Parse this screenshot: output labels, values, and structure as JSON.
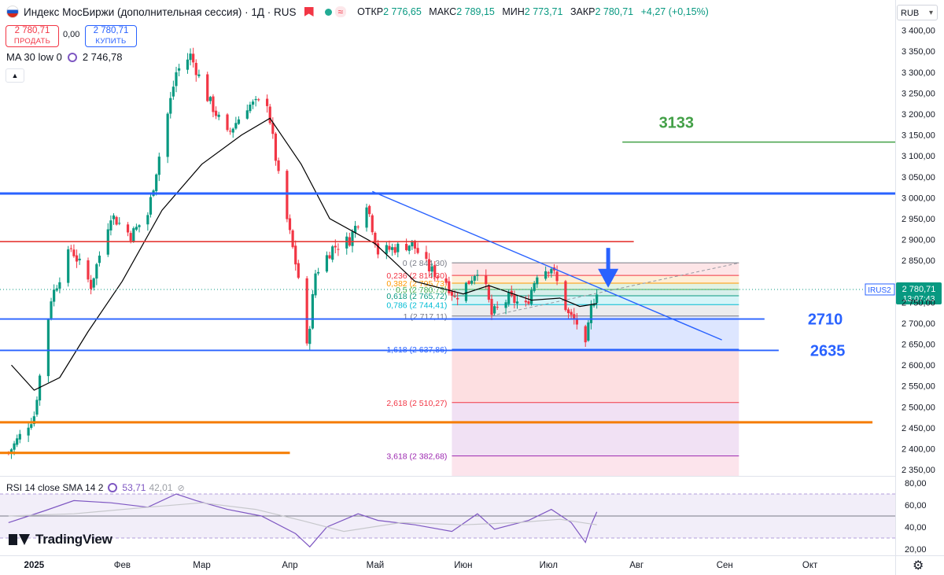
{
  "header": {
    "title": "Индекс МосБиржи (дополнительная сессия) · 1Д · RUS",
    "ohlc": [
      {
        "key": "ОТКР",
        "value": "2 776,65"
      },
      {
        "key": "МАКС",
        "value": "2 789,15"
      },
      {
        "key": "МИН",
        "value": "2 773,71"
      },
      {
        "key": "ЗАКР",
        "value": "2 780,71"
      }
    ],
    "change": "+4,27 (+0,15%)",
    "currency": "RUB"
  },
  "trade": {
    "sell_price": "2 780,71",
    "sell_label": "ПРОДАТЬ",
    "spread": "0,00",
    "buy_price": "2 780,71",
    "buy_label": "КУПИТЬ"
  },
  "ma": {
    "label": "MA 30 low 0",
    "value": "2 746,78"
  },
  "rsi": {
    "label": "RSI 14 close SMA 14 2",
    "value": "53,71",
    "sma_value": "42,01"
  },
  "branding": "TradingView",
  "colors": {
    "up": "#089981",
    "down": "#f23645",
    "ma": "#000000",
    "rsi": "#7e57c2",
    "level_blue": "#2962ff",
    "level_red": "#e53935",
    "level_orange": "#f57c00",
    "target_green": "#43a047"
  },
  "chart_data": {
    "type": "candlestick",
    "y_axis_labels": [
      "3 400,00",
      "3 350,00",
      "3 300,00",
      "3 250,00",
      "3 200,00",
      "3 150,00",
      "3 100,00",
      "3 050,00",
      "3 000,00",
      "2 950,00",
      "2 900,00",
      "2 850,00",
      "2 800,00",
      "2 750,00",
      "2 700,00",
      "2 650,00",
      "2 600,00",
      "2 550,00",
      "2 500,00",
      "2 450,00",
      "2 400,00",
      "2 350,00"
    ],
    "ylim": [
      2335,
      3420
    ],
    "x_axis_labels": [
      {
        "label": "2025",
        "date": "2025-01-01"
      },
      {
        "label": "Фев",
        "date": "2025-02-01"
      },
      {
        "label": "Мар",
        "date": "2025-03-01"
      },
      {
        "label": "Апр",
        "date": "2025-04-01"
      },
      {
        "label": "Май",
        "date": "2025-05-01"
      },
      {
        "label": "Июн",
        "date": "2025-06-01"
      },
      {
        "label": "Июл",
        "date": "2025-07-01"
      },
      {
        "label": "Авг",
        "date": "2025-08-01"
      },
      {
        "label": "Сен",
        "date": "2025-09-01"
      },
      {
        "label": "Окт",
        "date": "2025-10-01"
      }
    ],
    "path_anchors": [
      {
        "date": "2024-12-23",
        "close": 2390
      },
      {
        "date": "2025-01-01",
        "close": 2480
      },
      {
        "date": "2025-01-07",
        "close": 2760
      },
      {
        "date": "2025-01-14",
        "close": 2880
      },
      {
        "date": "2025-01-21",
        "close": 2790
      },
      {
        "date": "2025-01-28",
        "close": 2960
      },
      {
        "date": "2025-02-04",
        "close": 2910
      },
      {
        "date": "2025-02-10",
        "close": 2960
      },
      {
        "date": "2025-02-14",
        "close": 3100
      },
      {
        "date": "2025-02-20",
        "close": 3300
      },
      {
        "date": "2025-02-25",
        "close": 3340
      },
      {
        "date": "2025-03-03",
        "close": 3240
      },
      {
        "date": "2025-03-10",
        "close": 3150
      },
      {
        "date": "2025-03-17",
        "close": 3220
      },
      {
        "date": "2025-03-24",
        "close": 3230
      },
      {
        "date": "2025-03-28",
        "close": 3050
      },
      {
        "date": "2025-04-04",
        "close": 2810
      },
      {
        "date": "2025-04-07",
        "close": 2640
      },
      {
        "date": "2025-04-10",
        "close": 2820
      },
      {
        "date": "2025-04-16",
        "close": 2880
      },
      {
        "date": "2025-04-22",
        "close": 2900
      },
      {
        "date": "2025-04-28",
        "close": 2990
      },
      {
        "date": "2025-05-02",
        "close": 2870
      },
      {
        "date": "2025-05-08",
        "close": 2880
      },
      {
        "date": "2025-05-14",
        "close": 2890
      },
      {
        "date": "2025-05-20",
        "close": 2830
      },
      {
        "date": "2025-05-26",
        "close": 2800
      },
      {
        "date": "2025-05-29",
        "close": 2760
      },
      {
        "date": "2025-06-03",
        "close": 2800
      },
      {
        "date": "2025-06-07",
        "close": 2840
      },
      {
        "date": "2025-06-11",
        "close": 2720
      },
      {
        "date": "2025-06-17",
        "close": 2760
      },
      {
        "date": "2025-06-23",
        "close": 2740
      },
      {
        "date": "2025-06-27",
        "close": 2820
      },
      {
        "date": "2025-07-02",
        "close": 2835
      },
      {
        "date": "2025-07-08",
        "close": 2720
      },
      {
        "date": "2025-07-11",
        "close": 2700
      },
      {
        "date": "2025-07-14",
        "close": 2640
      },
      {
        "date": "2025-07-16",
        "close": 2735
      },
      {
        "date": "2025-07-18",
        "close": 2780
      }
    ],
    "ma30_path": [
      {
        "date": "2024-12-24",
        "value": 2600
      },
      {
        "date": "2025-01-01",
        "value": 2540
      },
      {
        "date": "2025-01-10",
        "value": 2570
      },
      {
        "date": "2025-01-20",
        "value": 2680
      },
      {
        "date": "2025-02-01",
        "value": 2800
      },
      {
        "date": "2025-02-15",
        "value": 2970
      },
      {
        "date": "2025-03-01",
        "value": 3080
      },
      {
        "date": "2025-03-15",
        "value": 3150
      },
      {
        "date": "2025-03-25",
        "value": 3190
      },
      {
        "date": "2025-04-05",
        "value": 3080
      },
      {
        "date": "2025-04-15",
        "value": 2950
      },
      {
        "date": "2025-05-01",
        "value": 2890
      },
      {
        "date": "2025-05-15",
        "value": 2800
      },
      {
        "date": "2025-06-01",
        "value": 2770
      },
      {
        "date": "2025-06-10",
        "value": 2790
      },
      {
        "date": "2025-06-25",
        "value": 2755
      },
      {
        "date": "2025-07-05",
        "value": 2760
      },
      {
        "date": "2025-07-12",
        "value": 2740
      },
      {
        "date": "2025-07-18",
        "value": 2746.78
      }
    ],
    "horizontal_levels": [
      {
        "price": 3010,
        "color": "#2962ff",
        "width": 3,
        "from": "2024-12-20",
        "to": "2025-10-31"
      },
      {
        "price": 2895,
        "color": "#e53935",
        "width": 1.6,
        "from": "2024-12-20",
        "to": "2025-07-31"
      },
      {
        "price": 2710,
        "color": "#2962ff",
        "width": 1.8,
        "from": "2024-12-20",
        "to": "2025-09-15",
        "label": "2710"
      },
      {
        "price": 2635,
        "color": "#2962ff",
        "width": 1.8,
        "from": "2024-12-20",
        "to": "2025-09-20",
        "label": "2635"
      },
      {
        "price": 2463,
        "color": "#f57c00",
        "width": 3,
        "from": "2024-12-20",
        "to": "2025-10-23"
      },
      {
        "price": 2390,
        "color": "#f57c00",
        "width": 3,
        "from": "2024-12-20",
        "to": "2025-04-01"
      },
      {
        "price": 3133,
        "color": "#43a047",
        "width": 1.6,
        "from": "2025-07-27",
        "to": "2025-10-31",
        "label": "3133"
      }
    ],
    "trendline": {
      "from": {
        "date": "2025-04-30",
        "price": 3015
      },
      "to": {
        "date": "2025-08-31",
        "price": 2660
      }
    },
    "fibonacci": {
      "from": "2025-05-28",
      "to": "2025-09-06",
      "levels": [
        {
          "ratio": "0",
          "price": "2 844,30",
          "y": 2844.3,
          "color": "#787b86"
        },
        {
          "ratio": "0,236",
          "price": "2 814,30",
          "y": 2814.3,
          "color": "#f23645"
        },
        {
          "ratio": "0,382",
          "price": "2 795,73",
          "y": 2795.73,
          "color": "#ff9800"
        },
        {
          "ratio": "0,5",
          "price": "2 780,73",
          "y": 2780.73,
          "color": "#4caf50"
        },
        {
          "ratio": "0,618",
          "price": "2 765,72",
          "y": 2765.72,
          "color": "#089981"
        },
        {
          "ratio": "0,786",
          "price": "2 744,41",
          "y": 2744.41,
          "color": "#00bcd4"
        },
        {
          "ratio": "1",
          "price": "2 717,11",
          "y": 2717.11,
          "color": "#787b86"
        },
        {
          "ratio": "1,618",
          "price": "2 637,86",
          "y": 2637.86,
          "color": "#2962ff"
        },
        {
          "ratio": "2,618",
          "price": "2 510,27",
          "y": 2510.27,
          "color": "#f23645"
        },
        {
          "ratio": "3,618",
          "price": "2 382,68",
          "y": 2382.68,
          "color": "#9c27b0"
        }
      ]
    },
    "arrow": {
      "date": "2025-07-22",
      "from_price": 2880,
      "to_price": 2785
    },
    "last_price": {
      "symbol": "IRUS2",
      "price": "2 780,71",
      "countdown": "13:07:43",
      "y": 2780.71
    },
    "rsi": {
      "y_axis_labels": [
        "80,00",
        "60,00",
        "40,00",
        "20,00"
      ],
      "ylim": [
        15,
        85
      ],
      "bands": [
        30,
        50,
        70
      ],
      "rsi_path": [
        {
          "date": "2024-12-23",
          "value": 44
        },
        {
          "date": "2025-01-05",
          "value": 55
        },
        {
          "date": "2025-01-15",
          "value": 64
        },
        {
          "date": "2025-01-28",
          "value": 62
        },
        {
          "date": "2025-02-10",
          "value": 58
        },
        {
          "date": "2025-02-20",
          "value": 70
        },
        {
          "date": "2025-02-27",
          "value": 64
        },
        {
          "date": "2025-03-10",
          "value": 56
        },
        {
          "date": "2025-03-22",
          "value": 50
        },
        {
          "date": "2025-04-03",
          "value": 34
        },
        {
          "date": "2025-04-08",
          "value": 22
        },
        {
          "date": "2025-04-14",
          "value": 40
        },
        {
          "date": "2025-04-25",
          "value": 52
        },
        {
          "date": "2025-05-02",
          "value": 46
        },
        {
          "date": "2025-05-15",
          "value": 42
        },
        {
          "date": "2025-05-28",
          "value": 36
        },
        {
          "date": "2025-06-06",
          "value": 52
        },
        {
          "date": "2025-06-12",
          "value": 38
        },
        {
          "date": "2025-06-24",
          "value": 46
        },
        {
          "date": "2025-07-02",
          "value": 56
        },
        {
          "date": "2025-07-09",
          "value": 44
        },
        {
          "date": "2025-07-14",
          "value": 26
        },
        {
          "date": "2025-07-16",
          "value": 42
        },
        {
          "date": "2025-07-18",
          "value": 53.71
        }
      ],
      "sma_path": [
        {
          "date": "2024-12-23",
          "value": 50
        },
        {
          "date": "2025-01-15",
          "value": 52
        },
        {
          "date": "2025-02-10",
          "value": 58
        },
        {
          "date": "2025-03-01",
          "value": 62
        },
        {
          "date": "2025-03-20",
          "value": 56
        },
        {
          "date": "2025-04-05",
          "value": 46
        },
        {
          "date": "2025-04-20",
          "value": 36
        },
        {
          "date": "2025-05-10",
          "value": 44
        },
        {
          "date": "2025-06-01",
          "value": 42
        },
        {
          "date": "2025-06-20",
          "value": 44
        },
        {
          "date": "2025-07-05",
          "value": 47
        },
        {
          "date": "2025-07-18",
          "value": 42.01
        }
      ]
    }
  }
}
